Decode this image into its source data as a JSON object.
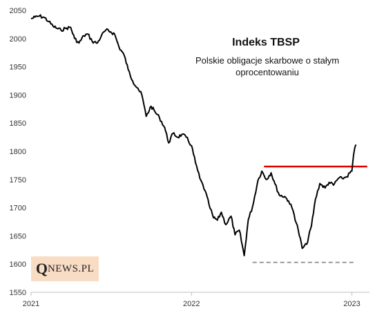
{
  "chart_data": {
    "type": "line",
    "title": "Indeks TBSP",
    "subtitle": "Polskie obligacje skarbowe o stałym oprocentowaniu",
    "subtitle_lines": [
      "Polskie obligacje skarbowe o stałym",
      "oprocentowaniu"
    ],
    "x_ticks": [
      "2021",
      "2022",
      "2023"
    ],
    "y_ticks": [
      1550,
      1600,
      1650,
      1700,
      1750,
      1800,
      1850,
      1900,
      1950,
      2000,
      2050
    ],
    "xlim": [
      "2021-01-01",
      "2023-02-10"
    ],
    "ylim": [
      1550,
      2050
    ],
    "grid": false,
    "series": [
      {
        "color": "#000000",
        "x": [
          "2021-01-01",
          "2021-01-10",
          "2021-01-20",
          "2021-02-01",
          "2021-02-10",
          "2021-02-20",
          "2021-03-01",
          "2021-03-10",
          "2021-03-20",
          "2021-04-01",
          "2021-04-10",
          "2021-04-20",
          "2021-05-01",
          "2021-05-10",
          "2021-05-20",
          "2021-06-01",
          "2021-06-10",
          "2021-06-20",
          "2021-07-01",
          "2021-07-10",
          "2021-07-20",
          "2021-08-01",
          "2021-08-10",
          "2021-08-20",
          "2021-09-01",
          "2021-09-10",
          "2021-09-20",
          "2021-10-01",
          "2021-10-10",
          "2021-10-20",
          "2021-11-01",
          "2021-11-10",
          "2021-11-20",
          "2021-12-01",
          "2021-12-10",
          "2021-12-20",
          "2022-01-01",
          "2022-01-10",
          "2022-01-20",
          "2022-02-01",
          "2022-02-10",
          "2022-02-20",
          "2022-03-01",
          "2022-03-10",
          "2022-03-20",
          "2022-04-01",
          "2022-04-10",
          "2022-04-20",
          "2022-05-01",
          "2022-05-10",
          "2022-05-20",
          "2022-06-01",
          "2022-06-10",
          "2022-06-20",
          "2022-07-01",
          "2022-07-10",
          "2022-07-20",
          "2022-08-01",
          "2022-08-10",
          "2022-08-20",
          "2022-09-01",
          "2022-09-10",
          "2022-09-20",
          "2022-10-01",
          "2022-10-10",
          "2022-10-20",
          "2022-11-01",
          "2022-11-10",
          "2022-11-20",
          "2022-12-01",
          "2022-12-10",
          "2022-12-20",
          "2023-01-01",
          "2023-01-05",
          "2023-01-10"
        ],
        "y": [
          2035,
          2038,
          2040,
          2037,
          2030,
          2022,
          2018,
          2015,
          2018,
          2020,
          2000,
          1992,
          2005,
          2008,
          1995,
          1992,
          2005,
          2015,
          2012,
          2008,
          1985,
          1970,
          1945,
          1925,
          1912,
          1900,
          1862,
          1880,
          1870,
          1860,
          1842,
          1815,
          1832,
          1825,
          1830,
          1825,
          1810,
          1780,
          1752,
          1730,
          1705,
          1682,
          1678,
          1692,
          1670,
          1685,
          1652,
          1660,
          1615,
          1678,
          1702,
          1748,
          1765,
          1750,
          1762,
          1742,
          1722,
          1720,
          1712,
          1695,
          1660,
          1628,
          1635,
          1668,
          1715,
          1743,
          1735,
          1745,
          1740,
          1752,
          1752,
          1755,
          1765,
          1795,
          1812
        ]
      }
    ],
    "annotations": [
      {
        "type": "resistance-line",
        "color": "#e00000",
        "y": 1773,
        "x_start": "2022-06-15",
        "x_end": "2023-02-05"
      },
      {
        "type": "support-line",
        "color": "#999999",
        "y": 1603,
        "x_start": "2022-05-20",
        "x_end": "2023-01-05"
      }
    ]
  },
  "logo": {
    "q": "Q",
    "rest": "NEWS.PL"
  }
}
